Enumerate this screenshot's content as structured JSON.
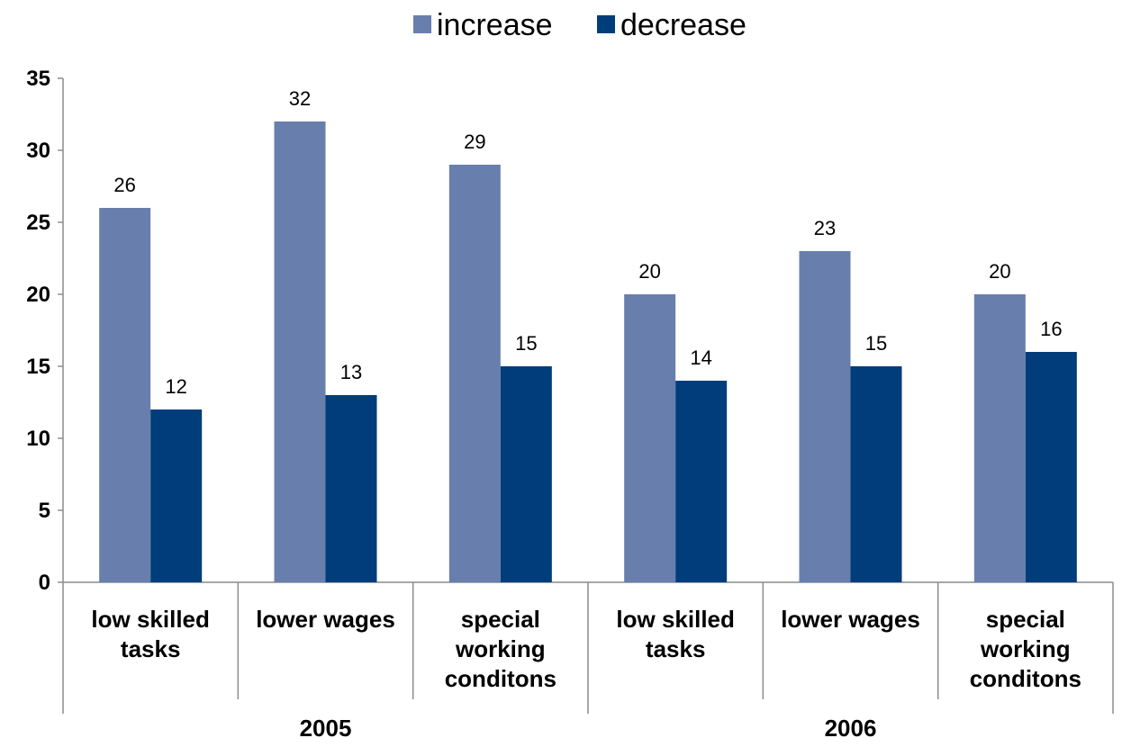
{
  "chart_data": {
    "type": "bar",
    "title": "",
    "xlabel": "",
    "ylabel": "",
    "ylim": [
      0,
      35
    ],
    "yticks": [
      "0",
      "5",
      "10",
      "15",
      "20",
      "25",
      "30",
      "35"
    ],
    "grid": false,
    "legend_position": "top",
    "groups": [
      {
        "label": "2005",
        "categories": [
          [
            "low skilled",
            "tasks"
          ],
          [
            "lower wages"
          ],
          [
            "special",
            "working",
            "conditons"
          ]
        ]
      },
      {
        "label": "2006",
        "categories": [
          [
            "low skilled",
            "tasks"
          ],
          [
            "lower wages"
          ],
          [
            "special",
            "working",
            "conditons"
          ]
        ]
      }
    ],
    "categories": [
      "low skilled tasks (2005)",
      "lower wages (2005)",
      "special working conditons (2005)",
      "low skilled tasks (2006)",
      "lower wages (2006)",
      "special working conditons (2006)"
    ],
    "series": [
      {
        "name": "increase",
        "color": "#687fad",
        "values": [
          26,
          32,
          29,
          20,
          23,
          20
        ]
      },
      {
        "name": "decrease",
        "color": "#003d7a",
        "values": [
          12,
          13,
          15,
          14,
          15,
          16
        ]
      }
    ]
  }
}
